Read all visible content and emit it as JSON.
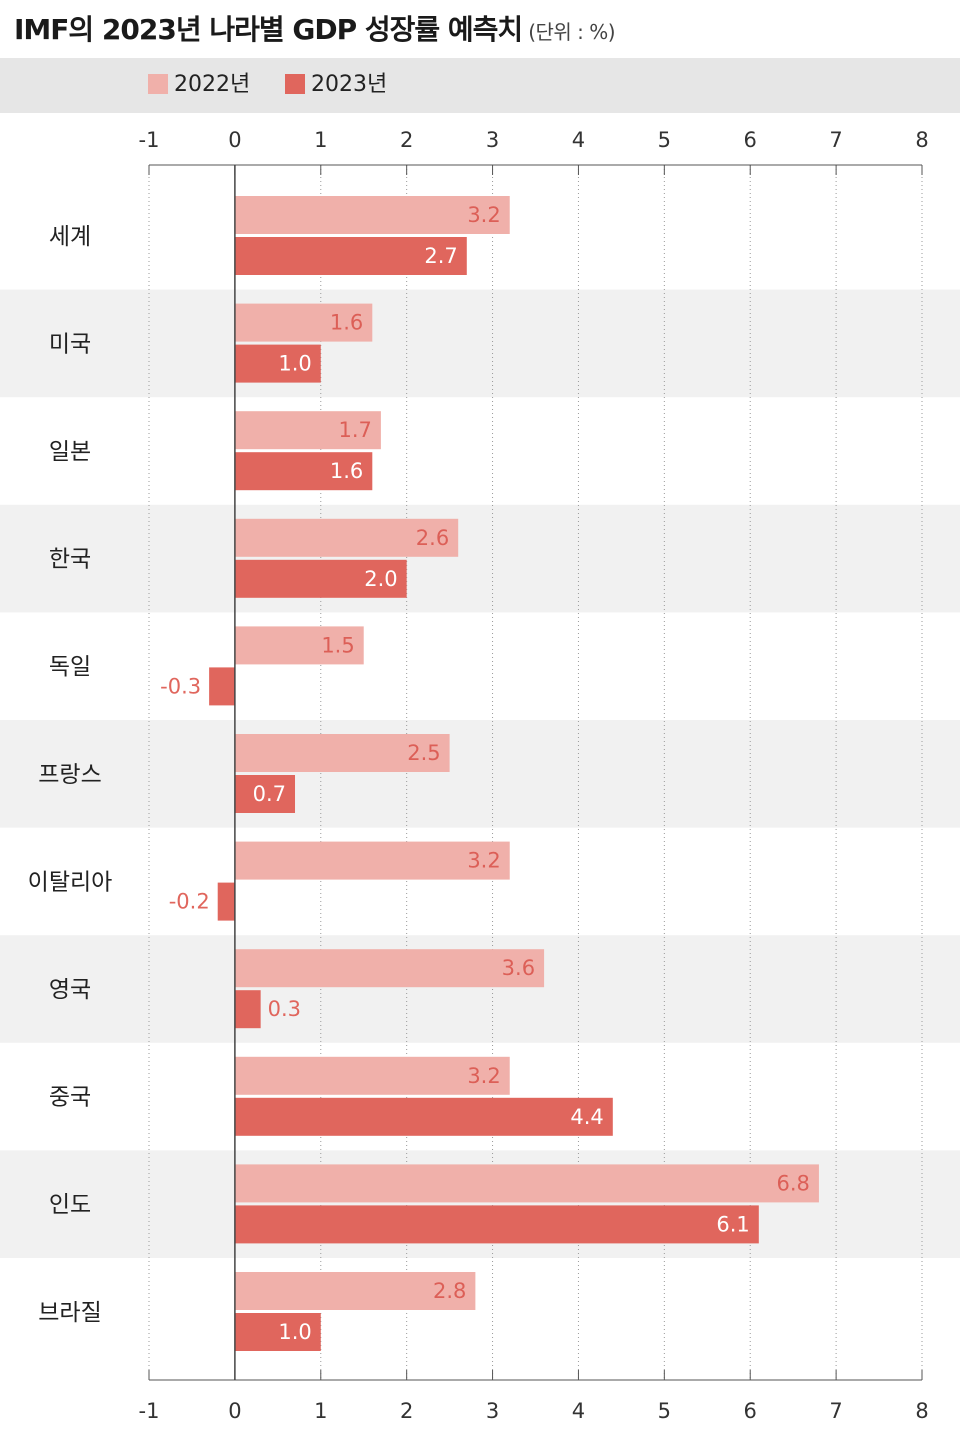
{
  "title": "IMF의 2023년 나라별 GDP 성장률 예측치",
  "unit": "(단위 : %)",
  "colors": {
    "series_2022": "#f0b0aa",
    "series_2023": "#e0665d",
    "band": "#f1f1f1",
    "legend_band": "#e6e6e6"
  },
  "chart_data": {
    "type": "bar",
    "orientation": "horizontal",
    "title": "IMF의 2023년 나라별 GDP 성장률 예측치",
    "unit": "(단위 : %)",
    "xlim": [
      -1,
      8
    ],
    "ticks": [
      "-1",
      "0",
      "1",
      "2",
      "3",
      "4",
      "5",
      "6",
      "7",
      "8"
    ],
    "tick_values": [
      -1,
      0,
      1,
      2,
      3,
      4,
      5,
      6,
      7,
      8
    ],
    "legend_position": "top-left",
    "grid": true,
    "categories": [
      "세계",
      "미국",
      "일본",
      "한국",
      "독일",
      "프랑스",
      "이탈리아",
      "영국",
      "중국",
      "인도",
      "브라질"
    ],
    "series": [
      {
        "name": "2022년",
        "values": [
          3.2,
          1.6,
          1.7,
          2.6,
          1.5,
          2.5,
          3.2,
          3.6,
          3.2,
          6.8,
          2.8
        ],
        "labels": [
          "3.2",
          "1.6",
          "1.7",
          "2.6",
          "1.5",
          "2.5",
          "3.2",
          "3.6",
          "3.2",
          "6.8",
          "2.8"
        ]
      },
      {
        "name": "2023년",
        "values": [
          2.7,
          1.0,
          1.6,
          2.0,
          -0.3,
          0.7,
          -0.2,
          0.3,
          4.4,
          6.1,
          1.0
        ],
        "labels": [
          "2.7",
          "1.0",
          "1.6",
          "2.0",
          "-0.3",
          "0.7",
          "-0.2",
          "0.3",
          "4.4",
          "6.1",
          "1.0"
        ]
      }
    ]
  }
}
